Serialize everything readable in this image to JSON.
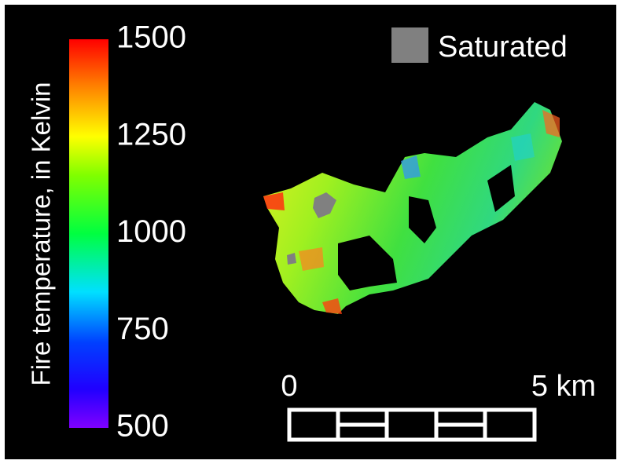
{
  "colorbar": {
    "label": "Fire temperature, in Kelvin",
    "lim": [
      500,
      1500
    ],
    "ticks": [
      500,
      750,
      1000,
      1250,
      1500
    ]
  },
  "legend": {
    "label": "Saturated"
  },
  "scale_bar": {
    "start_label": "0",
    "end_label": "5 km"
  }
}
